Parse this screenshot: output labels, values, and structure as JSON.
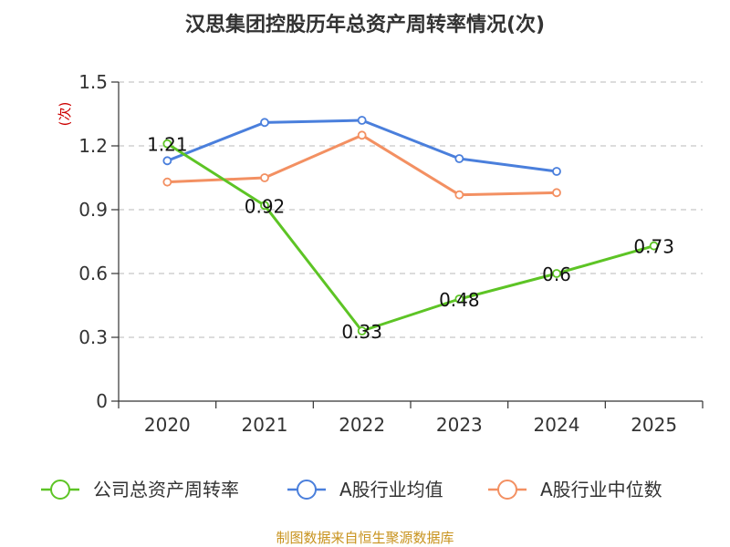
{
  "chart_data": {
    "type": "line",
    "title": "汉思集团控股历年总资产周转率情况(次)",
    "ylabel": "(次)",
    "xlabel": "",
    "categories": [
      "2020",
      "2021",
      "2022",
      "2023",
      "2024",
      "2025"
    ],
    "yticks": [
      "0",
      "0.3",
      "0.6",
      "0.9",
      "1.2",
      "1.5"
    ],
    "ylim": [
      0,
      1.5
    ],
    "grid": true,
    "legend_position": "bottom",
    "series": [
      {
        "name": "公司总资产周转率",
        "color": "#5dc425",
        "values": [
          1.21,
          0.92,
          0.33,
          0.48,
          0.6,
          0.73
        ],
        "labels": [
          "1.21",
          "0.92",
          "0.33",
          "0.48",
          "0.6",
          "0.73"
        ]
      },
      {
        "name": "A股行业均值",
        "color": "#4a7fdc",
        "values": [
          1.13,
          1.31,
          1.32,
          1.14,
          1.08,
          null
        ]
      },
      {
        "name": "A股行业中位数",
        "color": "#f39062",
        "values": [
          1.03,
          1.05,
          1.25,
          0.97,
          0.98,
          null
        ]
      }
    ],
    "source": "制图数据来自恒生聚源数据库"
  }
}
